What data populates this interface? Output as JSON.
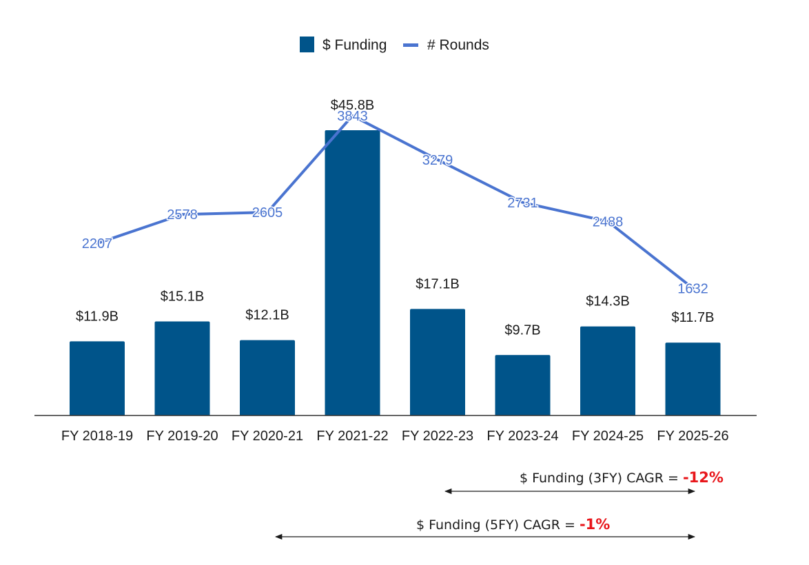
{
  "chart_data": {
    "type": "bar",
    "categories": [
      "FY 2018-19",
      "FY 2019-20",
      "FY 2020-21",
      "FY 2021-22",
      "FY 2022-23",
      "FY 2023-24",
      "FY 2024-25",
      "FY 2025-26"
    ],
    "series": [
      {
        "name": "$ Funding",
        "kind": "bar",
        "color": "#00548a",
        "values": [
          11.9,
          15.1,
          12.1,
          45.8,
          17.1,
          9.7,
          14.3,
          11.7
        ],
        "labels": [
          "$11.9B",
          "$15.1B",
          "$12.1B",
          "$45.8B",
          "$17.1B",
          "$9.7B",
          "$14.3B",
          "$11.7B"
        ]
      },
      {
        "name": "# Rounds",
        "kind": "line",
        "color": "#4a74d0",
        "values": [
          2207,
          2578,
          2605,
          3843,
          3279,
          2731,
          2488,
          1632
        ],
        "labels": [
          "2207",
          "2578",
          "2605",
          "3843",
          "3279",
          "2731",
          "2488",
          "1632"
        ]
      }
    ],
    "legend": {
      "position": "top-center",
      "items": [
        "$ Funding",
        "# Rounds"
      ]
    },
    "y_funding_range": [
      0,
      50
    ],
    "y_rounds_range": [
      0,
      4400
    ],
    "title": "",
    "xlabel": "",
    "ylabel": ""
  },
  "annotations": {
    "cagr_3fy": {
      "label": "$ Funding (3FY) CAGR = ",
      "value": "-12%",
      "from_category": 4,
      "to_category": 7
    },
    "cagr_5fy": {
      "label": "$ Funding (5FY) CAGR = ",
      "value": "-1%",
      "from_category": 2,
      "to_category": 7
    }
  },
  "colors": {
    "bar": "#00548a",
    "line": "#4a74d0",
    "negative": "#e8161b"
  }
}
